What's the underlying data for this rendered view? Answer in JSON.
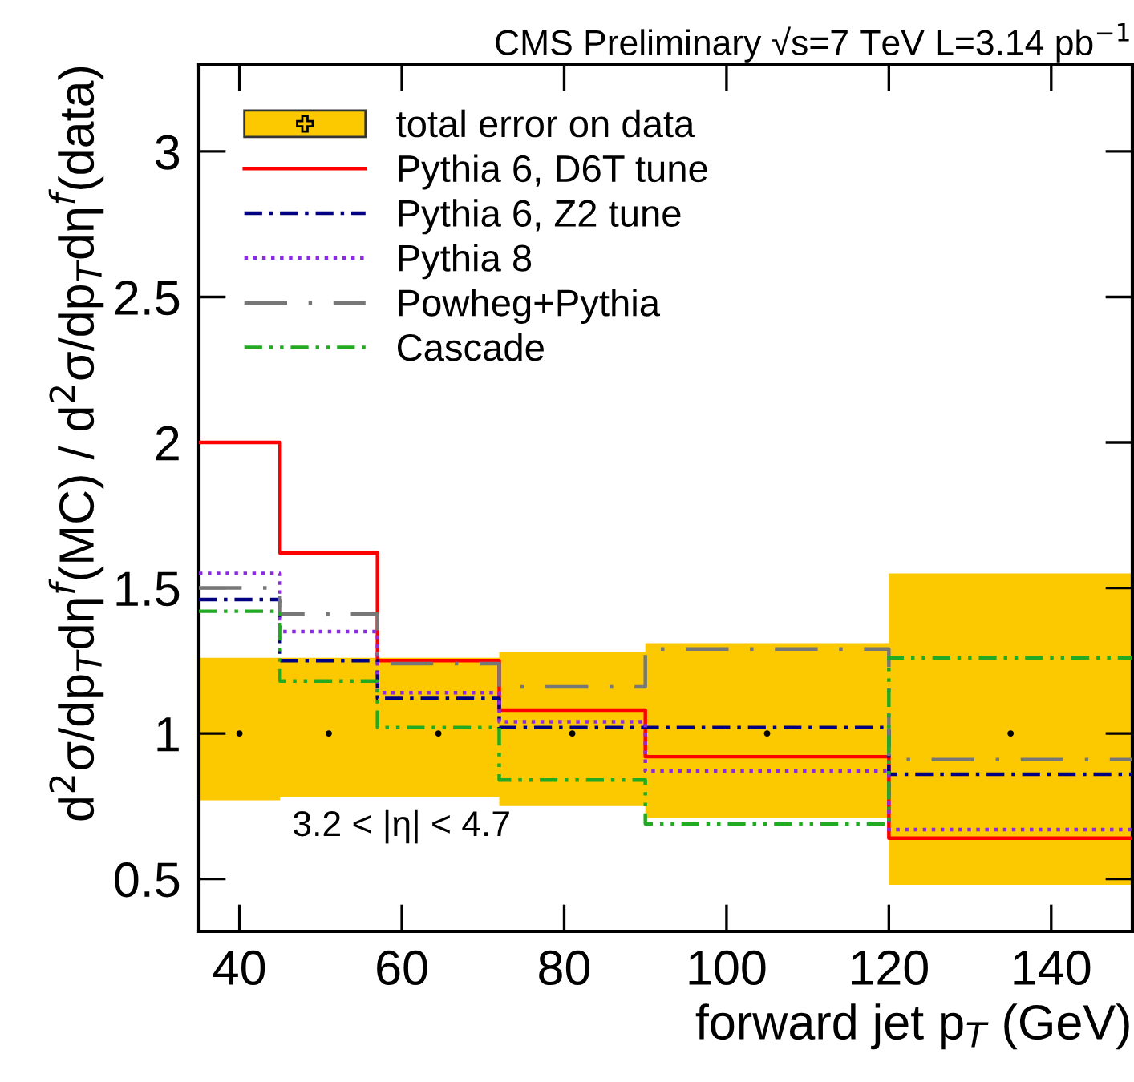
{
  "chart_data": {
    "type": "step",
    "title": "CMS Preliminary √s=7 TeV L=3.14 pb$^{−1}$",
    "xlabel": "forward jet p$_{T}$ (GeV)",
    "ylabel": "d$^{2}$σ/dp$_{T}$dη$^{f}$(MC) / d$^{2}$σ/dp$_{T}$dη$^{f}$(data)",
    "x": [
      35,
      45,
      57,
      72,
      90,
      120,
      150
    ],
    "series": [
      {
        "name": "total error on data",
        "color": "#fcc800",
        "values": [
          null,
          null,
          null,
          null,
          null,
          null,
          null
        ],
        "lower": [
          0.77,
          0.78,
          0.78,
          0.75,
          0.71,
          0.48,
          0.48
        ],
        "upper": [
          1.26,
          1.26,
          1.26,
          1.28,
          1.31,
          1.55,
          1.55
        ]
      },
      {
        "type": "scatter",
        "color": "#000000",
        "marker": "circle",
        "x": [
          40,
          51,
          64.5,
          81,
          105,
          135
        ],
        "values": [
          1,
          1,
          1,
          1,
          1,
          1
        ]
      },
      {
        "name": "Pythia 6, D6T tune",
        "color": "#ff0000",
        "line_style": "solid",
        "values": [
          2.0,
          1.62,
          1.25,
          1.08,
          0.92,
          0.64,
          0.64
        ]
      },
      {
        "name": "Pythia 6, Z2 tune",
        "color": "#000080",
        "line_style": "dashdot",
        "values": [
          1.46,
          1.25,
          1.12,
          1.02,
          1.02,
          0.86,
          0.86
        ]
      },
      {
        "name": "Pythia 8",
        "color": "#8a2be2",
        "line_style": "dotted",
        "values": [
          1.55,
          1.35,
          1.14,
          1.04,
          0.87,
          0.67,
          0.67
        ]
      },
      {
        "name": "Powheg+Pythia",
        "color": "#777777",
        "line_style": "longdashdot",
        "values": [
          1.5,
          1.41,
          1.24,
          1.16,
          1.29,
          0.91,
          0.91
        ]
      },
      {
        "name": "Cascade",
        "color": "#22aa22",
        "line_style": "dashdotdot",
        "values": [
          1.42,
          1.18,
          1.02,
          0.84,
          0.69,
          1.26,
          1.26
        ]
      }
    ],
    "annotations": [
      "3.2 < |η| < 4.7"
    ],
    "xlim": [
      35,
      150
    ],
    "xticks": [
      40,
      60,
      80,
      100,
      120,
      140
    ],
    "ylim": [
      0.32,
      3.3
    ],
    "yticks": [
      0.5,
      1,
      1.5,
      2,
      2.5,
      3
    ],
    "grid": false,
    "legend": "top left"
  }
}
